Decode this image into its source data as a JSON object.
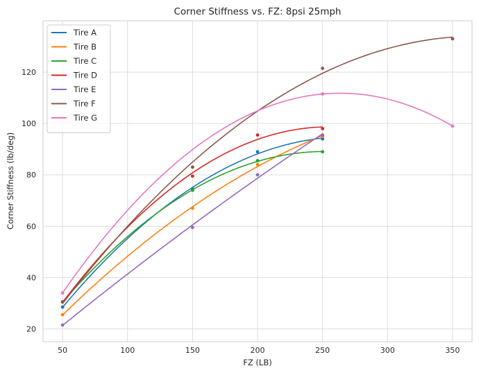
{
  "chart_data": {
    "type": "line",
    "title": "Corner Stiffness vs. FZ: 8psi 25mph",
    "xlabel": "FZ (LB)",
    "ylabel": "Corner Stiffness (lb/deg)",
    "xlim": [
      35,
      365
    ],
    "ylim": [
      15,
      140
    ],
    "xticks": [
      50,
      100,
      150,
      200,
      250,
      300,
      350
    ],
    "yticks": [
      20,
      40,
      60,
      80,
      100,
      120
    ],
    "grid": true,
    "legend_position": "top-left",
    "series": [
      {
        "name": "Tire A",
        "color": "#1f77b4",
        "x": [
          50,
          150,
          200,
          250
        ],
        "y": [
          28.5,
          74.5,
          89,
          94
        ],
        "fit_x_max": 250
      },
      {
        "name": "Tire B",
        "color": "#ff7f0e",
        "x": [
          50,
          150,
          200,
          250
        ],
        "y": [
          25.5,
          67,
          84,
          95
        ],
        "fit_x_max": 250
      },
      {
        "name": "Tire C",
        "color": "#2ca02c",
        "x": [
          50,
          150,
          200,
          250
        ],
        "y": [
          30.5,
          74,
          85.5,
          89
        ],
        "fit_x_max": 250
      },
      {
        "name": "Tire D",
        "color": "#d62728",
        "x": [
          50,
          150,
          200,
          250
        ],
        "y": [
          30.5,
          79.5,
          95.5,
          98
        ],
        "fit_x_max": 250
      },
      {
        "name": "Tire E",
        "color": "#9467bd",
        "x": [
          50,
          150,
          200,
          250
        ],
        "y": [
          21.5,
          59.5,
          80,
          95.5
        ],
        "fit_x_max": 250
      },
      {
        "name": "Tire F",
        "color": "#8c564b",
        "x": [
          50,
          150,
          250,
          350
        ],
        "y": [
          30.5,
          83,
          121.5,
          133
        ],
        "fit_x_max": 350
      },
      {
        "name": "Tire G",
        "color": "#e377c2",
        "x": [
          50,
          250,
          350
        ],
        "y": [
          34,
          111.5,
          99
        ],
        "fit_x_max": 350
      }
    ]
  }
}
